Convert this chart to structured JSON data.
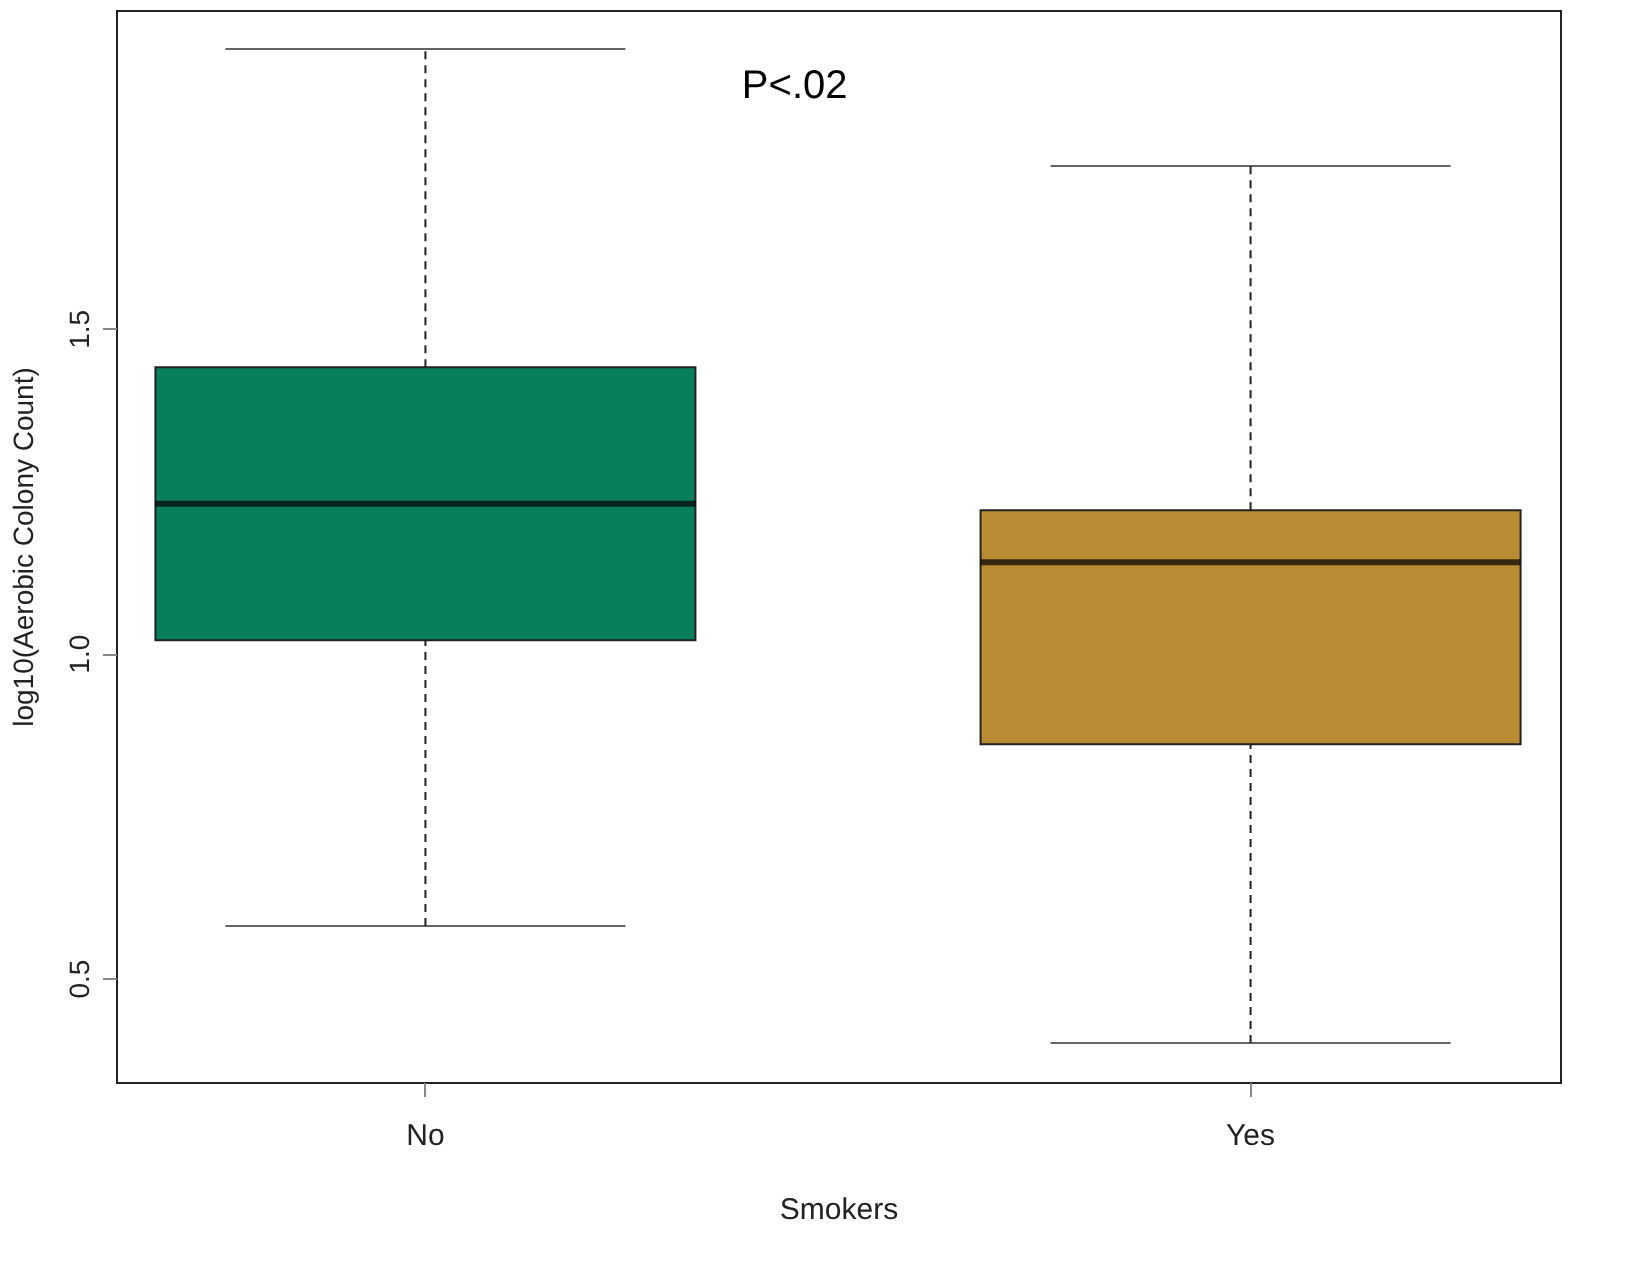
{
  "chart_data": {
    "type": "box",
    "xlabel": "Smokers",
    "ylabel": "log10(Aerobic Colony Count)",
    "categories": [
      "No",
      "Yes"
    ],
    "boxes": [
      {
        "low": 0.58,
        "q1": 1.02,
        "median": 1.23,
        "q3": 1.44,
        "high": 1.93
      },
      {
        "low": 0.4,
        "q1": 0.86,
        "median": 1.14,
        "q3": 1.22,
        "high": 1.75
      }
    ],
    "colors": [
      "#077f5b",
      "#b98b33"
    ],
    "ylim": [
      0.34,
      1.99
    ],
    "yticks": [
      0.5,
      {
        "value": 1,
        "label": "1.0"
      },
      1.5
    ],
    "annotations": [
      "P<.02"
    ],
    "grid": false,
    "legend": false
  }
}
